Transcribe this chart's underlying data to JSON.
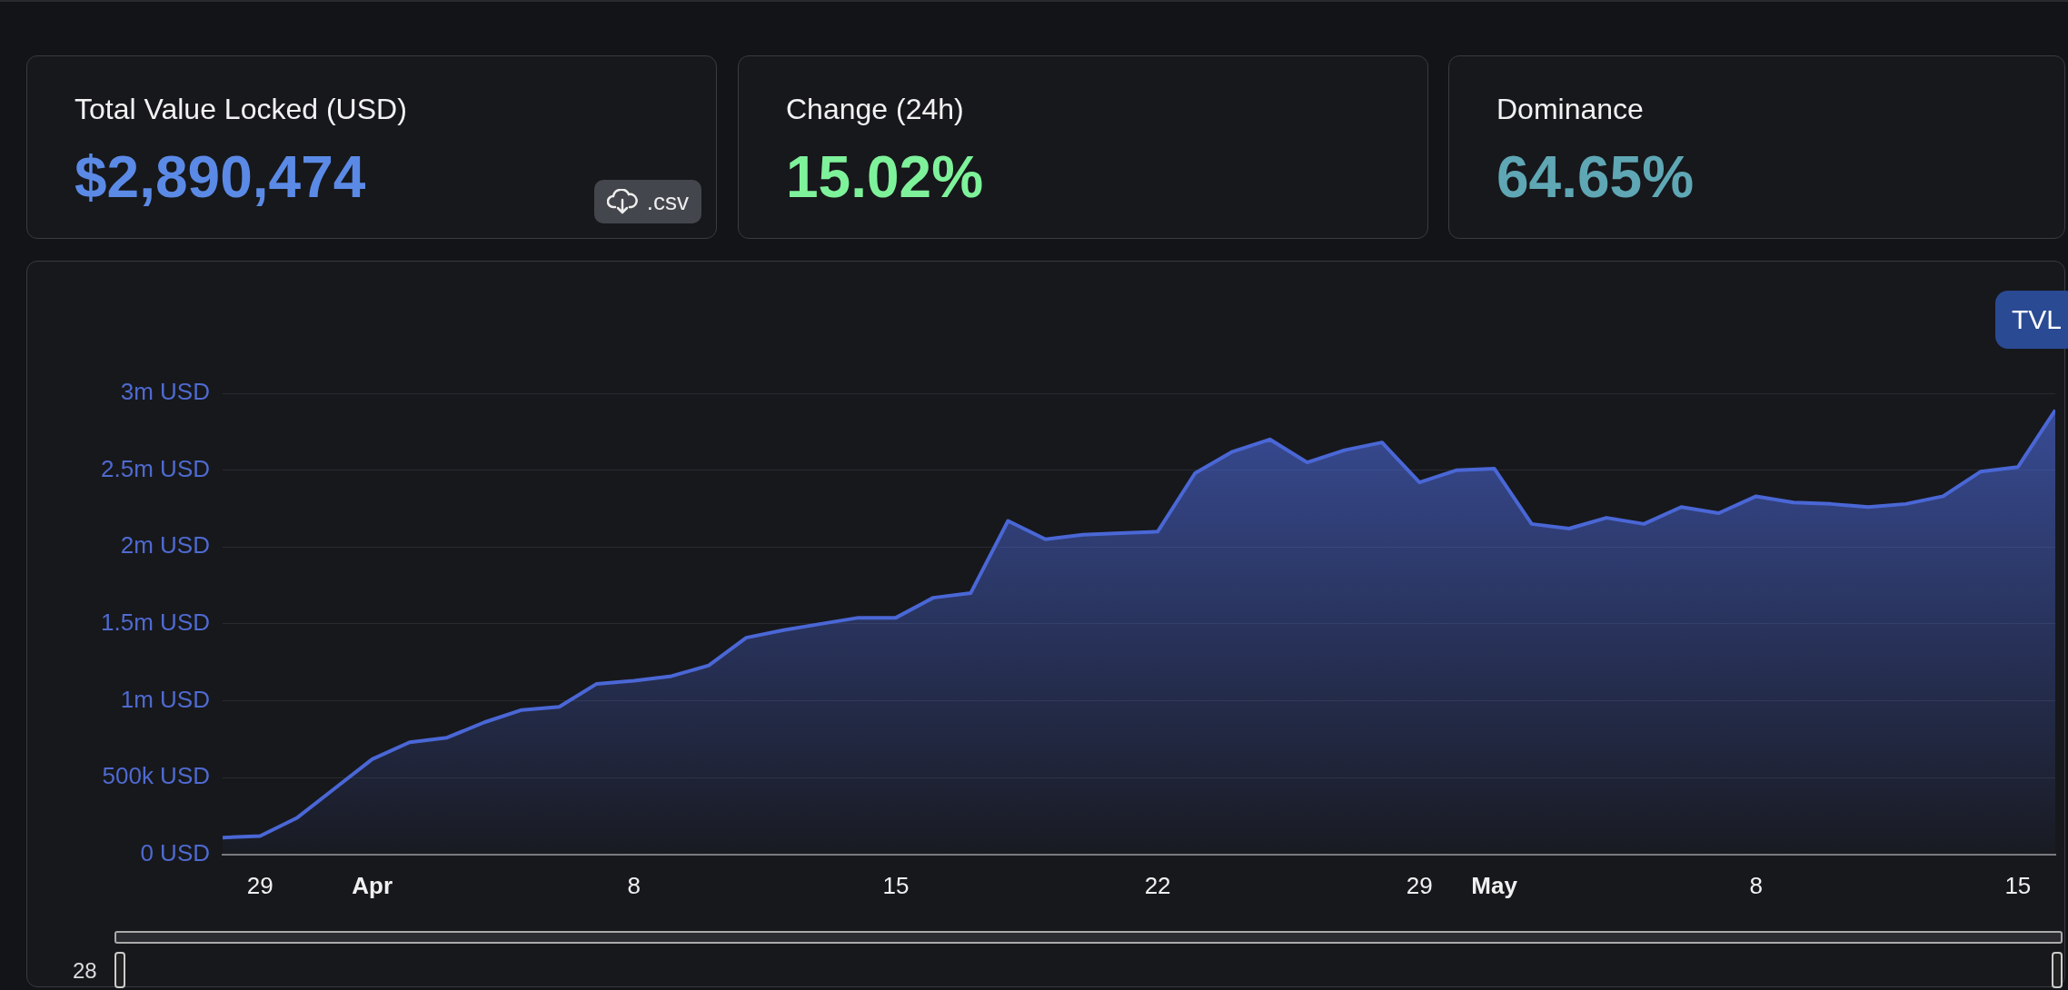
{
  "chart_data": [
    {
      "type": "other",
      "annotations": [
        "Total Value Locked (USD)",
        "$2,890,474",
        "Change (24h)",
        "15.02%",
        "Dominance",
        "64.65%",
        ".csv"
      ]
    },
    {
      "type": "area",
      "series": [
        {
          "color": "#4a67d6",
          "values": [
            110000,
            120000,
            240000,
            430000,
            620000,
            730000,
            760000,
            860000,
            940000,
            960000,
            1110000,
            1130000,
            1160000,
            1230000,
            1410000,
            1460000,
            1500000,
            1540000,
            1540000,
            1670000,
            1700000,
            2170000,
            2050000,
            2080000,
            2090000,
            2100000,
            2480000,
            2620000,
            2700000,
            2550000,
            2630000,
            2680000,
            2420000,
            2500000,
            2510000,
            2150000,
            2120000,
            2190000,
            2150000,
            2260000,
            2220000,
            2330000,
            2290000,
            2280000,
            2260000,
            2280000,
            2330000,
            2490000,
            2520000,
            2890000
          ]
        }
      ],
      "x": [
        "--03-28",
        "--03-29",
        "--03-30",
        "--03-31",
        "--04-01",
        "--04-02",
        "--04-03",
        "--04-04",
        "--04-05",
        "--04-06",
        "--04-07",
        "--04-08",
        "--04-09",
        "--04-10",
        "--04-11",
        "--04-12",
        "--04-13",
        "--04-14",
        "--04-15",
        "--04-16",
        "--04-17",
        "--04-18",
        "--04-19",
        "--04-20",
        "--04-21",
        "--04-22",
        "--04-23",
        "--04-24",
        "--04-25",
        "--04-26",
        "--04-27",
        "--04-28",
        "--04-29",
        "--04-30",
        "--05-01",
        "--05-02",
        "--05-03",
        "--05-04",
        "--05-05",
        "--05-06",
        "--05-07",
        "--05-08",
        "--05-09",
        "--05-10",
        "--05-11",
        "--05-12",
        "--05-13",
        "--05-14",
        "--05-15",
        "--05-16"
      ],
      "xlim": [
        "--03-28",
        "--05-16"
      ],
      "xticks": [
        {
          "value": "--03-29",
          "label": "29"
        },
        {
          "value": "--04-01",
          "label": "Apr"
        },
        {
          "value": "--04-08",
          "label": "8"
        },
        {
          "value": "--04-15",
          "label": "15"
        },
        {
          "value": "--04-22",
          "label": "22"
        },
        {
          "value": "--04-29",
          "label": "29"
        },
        {
          "value": "--05-01",
          "label": "May"
        },
        {
          "value": "--05-08",
          "label": "8"
        },
        {
          "value": "--05-15",
          "label": "15"
        }
      ],
      "ylim": [
        0,
        3000000
      ],
      "yticks": [
        {
          "value": 0,
          "label": "0 USD"
        },
        {
          "value": 500000,
          "label": "500k USD"
        },
        {
          "value": 1000000,
          "label": "1m USD"
        },
        {
          "value": 1500000,
          "label": "1.5m USD"
        },
        {
          "value": 2000000,
          "label": "2m USD"
        },
        {
          "value": 2500000,
          "label": "2.5m USD"
        },
        {
          "value": 3000000,
          "label": "3m USD"
        }
      ],
      "grid": "y",
      "legend": false,
      "annotations": [
        "TVL",
        "28"
      ]
    }
  ]
}
